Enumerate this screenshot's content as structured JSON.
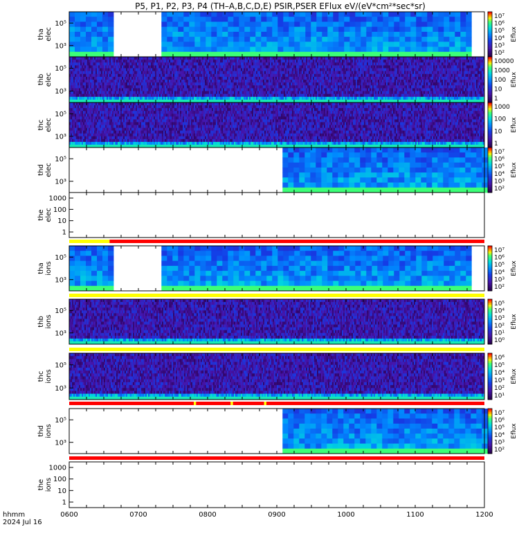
{
  "figure": {
    "title": "P5, P1, P2, P3, P4 (TH–A,B,C,D,E) PSIR,PSER EFlux eV/(eV*cm²*sec*sr)",
    "time_label": "hhmm",
    "date_label": "2024 Jul 16",
    "xticks": [
      "0600",
      "0700",
      "0800",
      "0900",
      "1000",
      "1100",
      "1200"
    ]
  },
  "chart_data": [
    {
      "type": "heatmap",
      "probe": "tha",
      "species": "elec",
      "label": [
        "tha",
        "elec"
      ],
      "yticks": [
        "10⁵",
        "10³"
      ],
      "cbar": {
        "label": "Eflux",
        "ticks": [
          "10⁷",
          "10⁶",
          "10⁵",
          "10⁴",
          "10³",
          "10²"
        ]
      },
      "coverage": [
        [
          "0600",
          "0635"
        ],
        [
          "0720",
          "1145"
        ]
      ]
    },
    {
      "type": "heatmap",
      "probe": "thb",
      "species": "elec",
      "label": [
        "thb",
        "elec"
      ],
      "yticks": [
        "10⁵",
        "10³"
      ],
      "cbar": {
        "label": "Eflux",
        "ticks": [
          "10000",
          "1000",
          "100",
          "10",
          "1"
        ]
      },
      "coverage": [
        [
          "0600",
          "1200"
        ]
      ]
    },
    {
      "type": "heatmap",
      "probe": "thc",
      "species": "elec",
      "label": [
        "thc",
        "elec"
      ],
      "yticks": [
        "10⁵",
        "10³"
      ],
      "cbar": {
        "label": "Eflux",
        "ticks": [
          "1000",
          "100",
          "10",
          "1"
        ]
      },
      "coverage": [
        [
          "0600",
          "1200"
        ]
      ]
    },
    {
      "type": "heatmap",
      "probe": "thd",
      "species": "elec",
      "label": [
        "thd",
        "elec"
      ],
      "yticks": [
        "10⁵",
        "10³"
      ],
      "cbar": {
        "label": "Eflux",
        "ticks": [
          "10⁷",
          "10⁶",
          "10⁵",
          "10⁴",
          "10³",
          "10²"
        ]
      },
      "coverage": [
        [
          "0865",
          "1200"
        ]
      ]
    },
    {
      "type": "heatmap",
      "probe": "the",
      "species": "elec",
      "label": [
        "the",
        "elec"
      ],
      "yticks": [
        "1000",
        "100",
        "10",
        "1"
      ],
      "cbar": null,
      "coverage": []
    },
    {
      "type": "heatmap",
      "probe": "tha",
      "species": "ions",
      "label": [
        "tha",
        "ions"
      ],
      "yticks": [
        "10⁵",
        "10³"
      ],
      "cbar": {
        "label": "Eflux",
        "ticks": [
          "10⁷",
          "10⁶",
          "10⁵",
          "10⁴",
          "10³",
          "10²"
        ]
      },
      "coverage": [
        [
          "0600",
          "0635"
        ],
        [
          "0720",
          "1145"
        ]
      ]
    },
    {
      "type": "heatmap",
      "probe": "thb",
      "species": "ions",
      "label": [
        "thb",
        "ions"
      ],
      "yticks": [
        "10⁵",
        "10³"
      ],
      "cbar": {
        "label": "Eflux",
        "ticks": [
          "10⁵",
          "10⁴",
          "10³",
          "10²",
          "10¹",
          "10⁰"
        ]
      },
      "coverage": [
        [
          "0600",
          "1200"
        ]
      ]
    },
    {
      "type": "heatmap",
      "probe": "thc",
      "species": "ions",
      "label": [
        "thc",
        "ions"
      ],
      "yticks": [
        "10⁵",
        "10³"
      ],
      "cbar": {
        "label": "Eflux",
        "ticks": [
          "10⁶",
          "10⁵",
          "10⁴",
          "10³",
          "10²",
          "10¹"
        ]
      },
      "coverage": [
        [
          "0600",
          "1200"
        ]
      ]
    },
    {
      "type": "heatmap",
      "probe": "thd",
      "species": "ions",
      "label": [
        "thd",
        "ions"
      ],
      "yticks": [
        "10⁵",
        "10³"
      ],
      "cbar": {
        "label": "Eflux",
        "ticks": [
          "10⁷",
          "10⁶",
          "10⁵",
          "10⁴",
          "10³",
          "10²"
        ]
      },
      "coverage": [
        [
          "0865",
          "1200"
        ]
      ]
    },
    {
      "type": "heatmap",
      "probe": "the",
      "species": "ions",
      "label": [
        "the",
        "ions"
      ],
      "yticks": [
        "1000",
        "100",
        "10",
        "1"
      ],
      "cbar": null,
      "coverage": []
    }
  ],
  "colors": {
    "bar_red": "#ff0000",
    "bar_yellow": "#ffff00",
    "low": "#2a0a6e",
    "mid": "#1e50ff",
    "high": "#20e0c0"
  }
}
